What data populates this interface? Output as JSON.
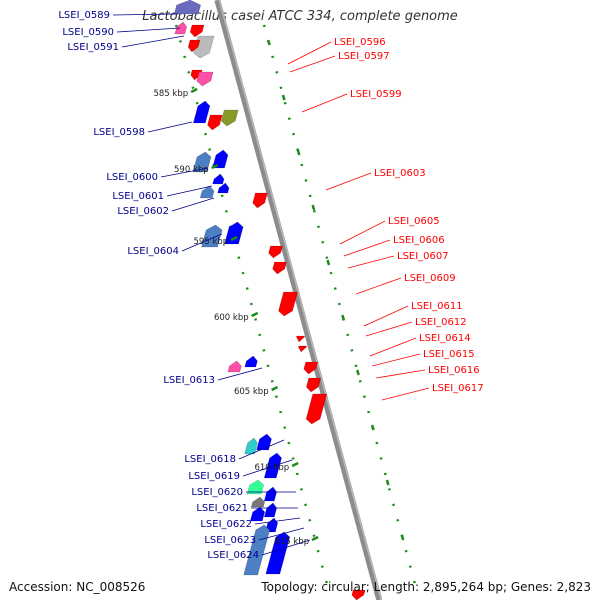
{
  "title": "Lactobacillus casei ATCC 334, complete genome",
  "footer": {
    "accession": "Accession: NC_008526",
    "summary": "Topology: circular; Length: 2,895,264 bp; Genes: 2,823"
  },
  "colors": {
    "forward_label": "#00008b",
    "reverse_label": "#ff0000",
    "backbone": "#8c8c8c",
    "tick": "#1a8c1a",
    "gene_blue": "#0000ff",
    "gene_red": "#ff0000"
  },
  "kbp_ticks": [
    {
      "label": "585 kbp"
    },
    {
      "label": "590 kbp"
    },
    {
      "label": "595 kbp"
    },
    {
      "label": "600 kbp"
    },
    {
      "label": "605 kbp"
    },
    {
      "label": "610 kbp"
    },
    {
      "label": "615 kbp"
    }
  ],
  "forward_genes": [
    {
      "label": "LSEI_0589"
    },
    {
      "label": "LSEI_0590"
    },
    {
      "label": "LSEI_0591"
    },
    {
      "label": "LSEI_0598"
    },
    {
      "label": "LSEI_0600"
    },
    {
      "label": "LSEI_0601"
    },
    {
      "label": "LSEI_0602"
    },
    {
      "label": "LSEI_0604"
    },
    {
      "label": "LSEI_0613"
    },
    {
      "label": "LSEI_0618"
    },
    {
      "label": "LSEI_0619"
    },
    {
      "label": "LSEI_0620"
    },
    {
      "label": "LSEI_0621"
    },
    {
      "label": "LSEI_0622"
    },
    {
      "label": "LSEI_0623"
    },
    {
      "label": "LSEI_0624"
    }
  ],
  "reverse_genes": [
    {
      "label": "LSEI_0596"
    },
    {
      "label": "LSEI_0597"
    },
    {
      "label": "LSEI_0599"
    },
    {
      "label": "LSEI_0603"
    },
    {
      "label": "LSEI_0605"
    },
    {
      "label": "LSEI_0606"
    },
    {
      "label": "LSEI_0607"
    },
    {
      "label": "LSEI_0609"
    },
    {
      "label": "LSEI_0611"
    },
    {
      "label": "LSEI_0612"
    },
    {
      "label": "LSEI_0614"
    },
    {
      "label": "LSEI_0615"
    },
    {
      "label": "LSEI_0616"
    },
    {
      "label": "LSEI_0617"
    }
  ]
}
